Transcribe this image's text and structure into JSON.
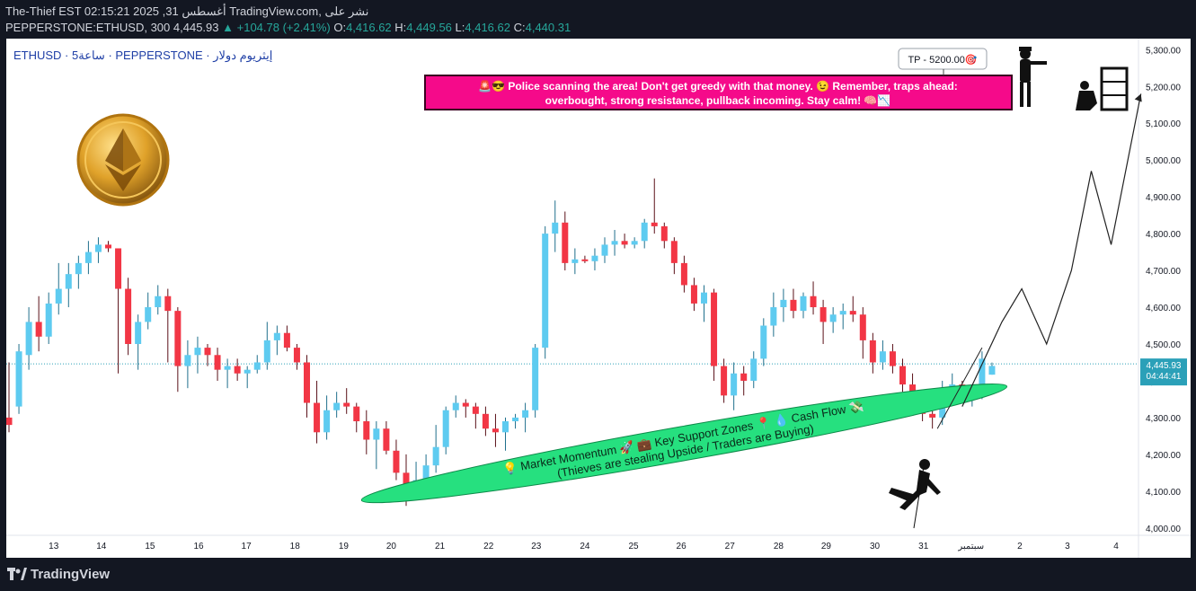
{
  "header": {
    "line1": "The-Thief EST 02:15:21 2025 ,31 ‪أغسطس‬ TradingView.com‪,‬ ‫نشر على‬",
    "symbol": "PEPPERSTONE:ETHUSD, 300",
    "last": "4,445.93",
    "change": "+104.78 (+2.41%)",
    "o_label": "O:",
    "o": "4,416.62",
    "h_label": "H:",
    "h": "4,449.56",
    "l_label": "L:",
    "l": "4,416.62",
    "c_label": "C:",
    "c": "4,440.31"
  },
  "legend": {
    "title": "ETHUSD · 5ساعة · PEPPERSTONE · ‫إيثريوم دولار‬"
  },
  "price_tag": {
    "price": "4,445.93",
    "countdown": "04:44:41"
  },
  "annotations": {
    "tp_label": "TP - 5200.00🎯",
    "banner_line1": "🚨😎 Police scanning the area! Don't get greedy with that money. 😉 Remember, traps ahead:",
    "banner_line2": "overbought, strong resistance, pullback incoming. Stay calm! 🧠📉",
    "ellipse_line1": "💡 Market Momentum 🚀 💼 Key Support Zones 📍 💧 Cash Flow 💸",
    "ellipse_line2": "(Thieves are stealing Upside / Traders are Buying)"
  },
  "footer": {
    "logo": "TradingView"
  },
  "colors": {
    "up": "#5ecbf0",
    "down": "#f23645",
    "banner": "#f50a8a",
    "ellipse": "#26e07f",
    "price_line": "#2ba0b8"
  },
  "chart_data": {
    "type": "candlestick",
    "title": "ETHUSD · 5ساعة · PEPPERSTONE · ‫إيثريوم دولار‬",
    "ylim": [
      3980,
      5330
    ],
    "y_ticks": [
      4000,
      4100,
      4200,
      4300,
      4400,
      4500,
      4600,
      4700,
      4800,
      4900,
      5000,
      5100,
      5200,
      5300
    ],
    "y_tick_labels": [
      "4,000.00",
      "4,100.00",
      "4,200.00",
      "4,300.00",
      "4,400.00",
      "4,500.00",
      "4,600.00",
      "4,700.00",
      "4,800.00",
      "4,900.00",
      "5,000.00",
      "5,100.00",
      "5,200.00",
      "5,300.00"
    ],
    "x_ticks": [
      {
        "label": "13",
        "bar": 4.5
      },
      {
        "label": "14",
        "bar": 9.3
      },
      {
        "label": "15",
        "bar": 14.2
      },
      {
        "label": "16",
        "bar": 19.1
      },
      {
        "label": "17",
        "bar": 23.9
      },
      {
        "label": "18",
        "bar": 28.8
      },
      {
        "label": "19",
        "bar": 33.7
      },
      {
        "label": "20",
        "bar": 38.5
      },
      {
        "label": "21",
        "bar": 43.4
      },
      {
        "label": "22",
        "bar": 48.3
      },
      {
        "label": "23",
        "bar": 53.1
      },
      {
        "label": "24",
        "bar": 58.0
      },
      {
        "label": "25",
        "bar": 62.9
      },
      {
        "label": "26",
        "bar": 67.7
      },
      {
        "label": "27",
        "bar": 72.6
      },
      {
        "label": "28",
        "bar": 77.5
      },
      {
        "label": "29",
        "bar": 82.3
      },
      {
        "label": "30",
        "bar": 87.2
      },
      {
        "label": "31",
        "bar": 92.1
      },
      {
        "label": "سبتمبر",
        "bar": 96.9
      },
      {
        "label": "2",
        "bar": 101.8
      },
      {
        "label": "3",
        "bar": 106.6
      },
      {
        "label": "4",
        "bar": 111.5
      }
    ],
    "last_price": 4445.93,
    "candles": [
      [
        4300,
        4450,
        4260,
        4280
      ],
      [
        4330,
        4500,
        4310,
        4480
      ],
      [
        4470,
        4600,
        4430,
        4560
      ],
      [
        4560,
        4630,
        4480,
        4520
      ],
      [
        4520,
        4640,
        4500,
        4610
      ],
      [
        4610,
        4720,
        4580,
        4650
      ],
      [
        4650,
        4720,
        4600,
        4690
      ],
      [
        4690,
        4740,
        4650,
        4720
      ],
      [
        4720,
        4780,
        4690,
        4750
      ],
      [
        4750,
        4790,
        4720,
        4770
      ],
      [
        4770,
        4780,
        4750,
        4760
      ],
      [
        4760,
        4750,
        4420,
        4650
      ],
      [
        4650,
        4680,
        4470,
        4500
      ],
      [
        4500,
        4580,
        4430,
        4560
      ],
      [
        4560,
        4640,
        4540,
        4600
      ],
      [
        4600,
        4660,
        4580,
        4630
      ],
      [
        4630,
        4650,
        4450,
        4590
      ],
      [
        4590,
        4600,
        4370,
        4440
      ],
      [
        4440,
        4510,
        4380,
        4470
      ],
      [
        4470,
        4520,
        4420,
        4490
      ],
      [
        4490,
        4500,
        4440,
        4470
      ],
      [
        4470,
        4490,
        4400,
        4430
      ],
      [
        4430,
        4460,
        4380,
        4440
      ],
      [
        4440,
        4460,
        4400,
        4420
      ],
      [
        4420,
        4440,
        4380,
        4430
      ],
      [
        4430,
        4470,
        4420,
        4450
      ],
      [
        4450,
        4560,
        4430,
        4510
      ],
      [
        4510,
        4550,
        4470,
        4530
      ],
      [
        4530,
        4550,
        4480,
        4490
      ],
      [
        4490,
        4500,
        4430,
        4450
      ],
      [
        4450,
        4470,
        4300,
        4340
      ],
      [
        4340,
        4400,
        4230,
        4260
      ],
      [
        4260,
        4360,
        4240,
        4320
      ],
      [
        4320,
        4370,
        4300,
        4340
      ],
      [
        4340,
        4380,
        4310,
        4330
      ],
      [
        4330,
        4340,
        4260,
        4290
      ],
      [
        4290,
        4320,
        4200,
        4240
      ],
      [
        4240,
        4290,
        4160,
        4270
      ],
      [
        4270,
        4290,
        4200,
        4210
      ],
      [
        4210,
        4240,
        4130,
        4150
      ],
      [
        4150,
        4200,
        4060,
        4120
      ],
      [
        4120,
        4180,
        4080,
        4130
      ],
      [
        4130,
        4200,
        4120,
        4170
      ],
      [
        4170,
        4280,
        4150,
        4220
      ],
      [
        4220,
        4330,
        4200,
        4320
      ],
      [
        4320,
        4360,
        4300,
        4340
      ],
      [
        4340,
        4350,
        4300,
        4330
      ],
      [
        4330,
        4340,
        4270,
        4310
      ],
      [
        4310,
        4330,
        4250,
        4270
      ],
      [
        4270,
        4310,
        4220,
        4260
      ],
      [
        4260,
        4300,
        4210,
        4290
      ],
      [
        4290,
        4310,
        4270,
        4300
      ],
      [
        4300,
        4340,
        4260,
        4320
      ],
      [
        4320,
        4500,
        4300,
        4490
      ],
      [
        4490,
        4820,
        4460,
        4800
      ],
      [
        4800,
        4890,
        4750,
        4830
      ],
      [
        4830,
        4860,
        4700,
        4720
      ],
      [
        4720,
        4760,
        4690,
        4730
      ],
      [
        4730,
        4740,
        4720,
        4725
      ],
      [
        4725,
        4760,
        4700,
        4740
      ],
      [
        4740,
        4790,
        4720,
        4770
      ],
      [
        4770,
        4810,
        4740,
        4780
      ],
      [
        4780,
        4800,
        4760,
        4770
      ],
      [
        4770,
        4790,
        4760,
        4780
      ],
      [
        4780,
        4840,
        4760,
        4830
      ],
      [
        4830,
        4950,
        4800,
        4820
      ],
      [
        4820,
        4830,
        4760,
        4780
      ],
      [
        4780,
        4790,
        4690,
        4720
      ],
      [
        4720,
        4740,
        4640,
        4660
      ],
      [
        4660,
        4680,
        4590,
        4610
      ],
      [
        4610,
        4660,
        4560,
        4640
      ],
      [
        4640,
        4650,
        4400,
        4440
      ],
      [
        4440,
        4460,
        4340,
        4360
      ],
      [
        4360,
        4450,
        4320,
        4420
      ],
      [
        4420,
        4440,
        4360,
        4400
      ],
      [
        4400,
        4480,
        4380,
        4460
      ],
      [
        4460,
        4570,
        4440,
        4550
      ],
      [
        4550,
        4640,
        4520,
        4600
      ],
      [
        4600,
        4650,
        4560,
        4620
      ],
      [
        4620,
        4650,
        4570,
        4590
      ],
      [
        4590,
        4640,
        4570,
        4630
      ],
      [
        4630,
        4670,
        4580,
        4600
      ],
      [
        4600,
        4620,
        4500,
        4560
      ],
      [
        4560,
        4600,
        4530,
        4580
      ],
      [
        4580,
        4610,
        4540,
        4590
      ],
      [
        4590,
        4630,
        4560,
        4580
      ],
      [
        4580,
        4600,
        4460,
        4510
      ],
      [
        4510,
        4530,
        4420,
        4450
      ],
      [
        4450,
        4510,
        4430,
        4480
      ],
      [
        4480,
        4500,
        4420,
        4440
      ],
      [
        4440,
        4460,
        4370,
        4390
      ],
      [
        4390,
        4420,
        4320,
        4340
      ],
      [
        4340,
        4360,
        4290,
        4310
      ],
      [
        4310,
        4340,
        4270,
        4300
      ],
      [
        4300,
        4400,
        4280,
        4380
      ],
      [
        4380,
        4420,
        4350,
        4390
      ],
      [
        4390,
        4400,
        4340,
        4360
      ],
      [
        4360,
        4390,
        4330,
        4370
      ],
      [
        4370,
        4480,
        4350,
        4460
      ],
      [
        4416.62,
        4449.56,
        4416.62,
        4440.31
      ]
    ],
    "projection_path": [
      [
        96.0,
        4330
      ],
      [
        100.0,
        4560
      ],
      [
        102.0,
        4650
      ],
      [
        104.5,
        4500
      ],
      [
        107.0,
        4700
      ],
      [
        109.0,
        4970
      ],
      [
        111.0,
        4770
      ],
      [
        114.0,
        5180
      ]
    ],
    "trendline": [
      [
        93.5,
        4270
      ],
      [
        98.0,
        4490
      ]
    ],
    "support_ellipse": {
      "center_bar": 68,
      "center_price": 4230,
      "rx_bars": 33,
      "ry": 19
    }
  }
}
